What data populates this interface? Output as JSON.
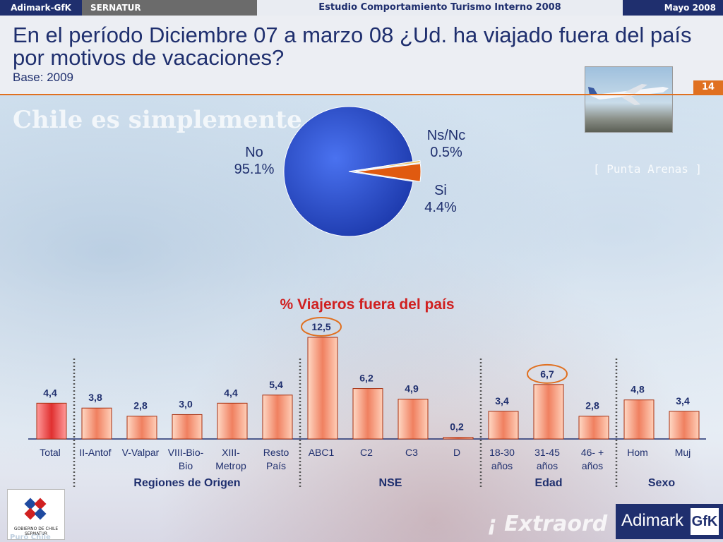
{
  "topbar": {
    "brand": "Adimark-GfK",
    "client": "SERNATUR",
    "study": "Estudio Comportamiento Turismo Interno 2008",
    "date": "Mayo 2008"
  },
  "header": {
    "title": "En el período Diciembre 07 a marzo 08 ¿Ud. ha viajado fuera del país por motivos de vacaciones?",
    "base": "Base: 2009",
    "page_number": "14"
  },
  "background": {
    "watermark": "Chile es simplemente",
    "place": "[ Punta Arenas ]",
    "slogan": "¡ Extraord",
    "footer_left": "Puro Chile"
  },
  "logos": {
    "gobierno": "GOBIERNO DE CHILE",
    "gobierno_sub": "SERNATUR",
    "adimark": "Adimark",
    "gfk": "GfK"
  },
  "chart_data": [
    {
      "type": "pie",
      "categories": [
        "No",
        "Si",
        "Ns/Nc"
      ],
      "values": [
        95.1,
        4.4,
        0.5
      ],
      "value_labels": [
        "95.1%",
        "4.4%",
        "0.5%"
      ],
      "colors": {
        "No": "#2a4fd6",
        "Si": "#e05a10",
        "Ns/Nc": "#e8c060"
      }
    },
    {
      "type": "bar",
      "title": "% Viajeros fuera del país",
      "categories": [
        "Total",
        "II-Antof",
        "V-Valpar",
        "VIII-Bio-Bio",
        "XIII-Metrop",
        "Resto País",
        "ABC1",
        "C2",
        "C3",
        "D",
        "18-30 años",
        "31-45 años",
        "46- + años",
        "Hom",
        "Muj"
      ],
      "category_lines": [
        [
          "Total"
        ],
        [
          "II-Antof"
        ],
        [
          "V-Valpar"
        ],
        [
          "VIII-Bio-",
          "Bio"
        ],
        [
          "XIII-",
          "Metrop"
        ],
        [
          "Resto",
          "País"
        ],
        [
          "ABC1"
        ],
        [
          "C2"
        ],
        [
          "C3"
        ],
        [
          "D"
        ],
        [
          "18-30",
          "años"
        ],
        [
          "31-45",
          "años"
        ],
        [
          "46- +",
          "años"
        ],
        [
          "Hom"
        ],
        [
          "Muj"
        ]
      ],
      "values": [
        4.4,
        3.8,
        2.8,
        3.0,
        4.4,
        5.4,
        12.5,
        6.2,
        4.9,
        0.2,
        3.4,
        6.7,
        2.8,
        4.8,
        3.4
      ],
      "value_labels": [
        "4,4",
        "3,8",
        "2,8",
        "3,0",
        "4,4",
        "5,4",
        "12,5",
        "6,2",
        "4,9",
        "0,2",
        "3,4",
        "6,7",
        "2,8",
        "4,8",
        "3,4"
      ],
      "highlighted": [
        "ABC1",
        "31-45 años"
      ],
      "groups": [
        {
          "name": "Regiones de Origen",
          "from": 1,
          "to": 5
        },
        {
          "name": "NSE",
          "from": 6,
          "to": 9
        },
        {
          "name": "Edad",
          "from": 10,
          "to": 12
        },
        {
          "name": "Sexo",
          "from": 13,
          "to": 14
        }
      ],
      "ylim": [
        0,
        13
      ],
      "grid": false,
      "colors": {
        "total": "#e03030",
        "bars": "#f08060",
        "highlight_ring": "#e07020"
      }
    }
  ]
}
